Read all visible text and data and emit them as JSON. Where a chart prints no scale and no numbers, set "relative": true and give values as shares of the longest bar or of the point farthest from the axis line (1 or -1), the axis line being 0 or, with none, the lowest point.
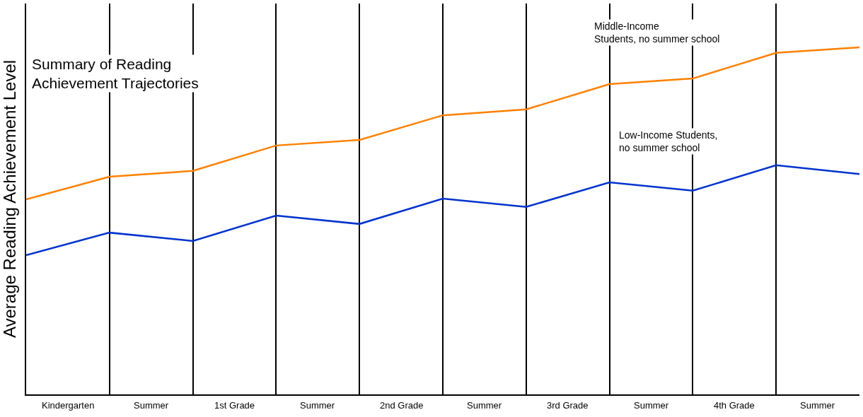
{
  "chart_data": {
    "type": "line",
    "title": "Summary of Reading\nAchievement Trajectories",
    "ylabel": "Average Reading Achievement Level",
    "relative": true,
    "categories": [
      null,
      null,
      null,
      null,
      null,
      null,
      null,
      null,
      null,
      null,
      null
    ],
    "annotations": [
      "Kindergarten",
      "Summer",
      "1st Grade",
      "Summer",
      "2nd Grade",
      "Summer",
      "3rd Grade",
      "Summer",
      "4th Grade",
      "Summer"
    ],
    "series": [
      {
        "name": "Middle-Income\nStudents, no summer school",
        "color": "#ff8000",
        "values": [
          0.562,
          0.627,
          0.644,
          0.717,
          0.733,
          0.804,
          0.821,
          0.894,
          0.91,
          0.984,
          1
        ]
      },
      {
        "name": "Low-Income Students,\nno summer school",
        "color": "#0033cc",
        "values": [
          0.401,
          0.466,
          0.442,
          0.515,
          0.491,
          0.564,
          0.54,
          0.611,
          0.587,
          0.66,
          0.635
        ]
      }
    ],
    "legend": false,
    "grid": "x",
    "marker": "none",
    "line_style": "solid"
  }
}
